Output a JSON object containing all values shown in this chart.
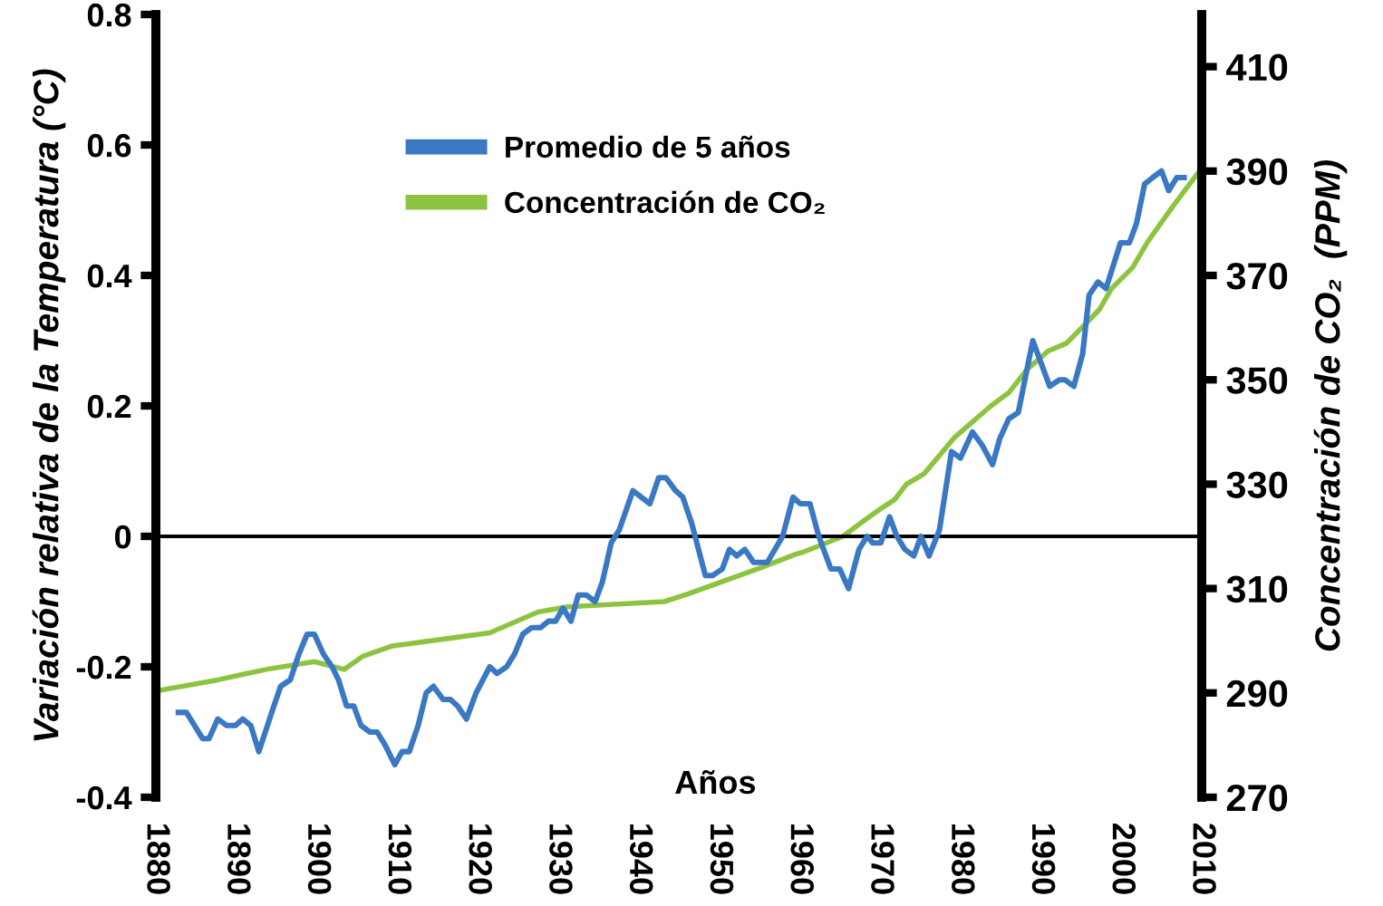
{
  "chart_data": {
    "type": "line",
    "xlabel": "Años",
    "ylabel": "Variación relativa de la Temperatura (°C)",
    "y2label": "Concentración de CO₂  (PPM)",
    "xlim": [
      1880,
      2010
    ],
    "xticks": [
      1880,
      1890,
      1900,
      1910,
      1920,
      1930,
      1940,
      1950,
      1960,
      1970,
      1980,
      1990,
      2000,
      2010
    ],
    "ylim": [
      -0.4,
      0.8
    ],
    "yticks": [
      -0.4,
      -0.2,
      0,
      0.2,
      0.4,
      0.6,
      0.8
    ],
    "y2lim": [
      270,
      420
    ],
    "y2ticks": [
      270,
      290,
      310,
      330,
      350,
      370,
      390,
      410
    ],
    "grid": false,
    "legend": "top left",
    "marker": "none",
    "line_style": "solid",
    "ref_lines": [
      {
        "axis": "y",
        "value": 0,
        "label": null,
        "color": "#000000"
      }
    ],
    "series": [
      {
        "name": "Promedio de 5 años",
        "color": "#3a78c4",
        "x": [
          1882.8,
          1883.8,
          1885.8,
          1886.6,
          1887.7,
          1888.8,
          1889.9,
          1890.8,
          1891.8,
          1892.8,
          1894.4,
          1895.5,
          1896.7,
          1897.8,
          1898.8,
          1899.7,
          1900.8,
          1901.9,
          1902.7,
          1903.7,
          1904.6,
          1905.5,
          1906.6,
          1907.5,
          1908.5,
          1909.7,
          1910.6,
          1911.5,
          1912.6,
          1913.6,
          1914.5,
          1915.7,
          1916.6,
          1917.5,
          1918.6,
          1919.8,
          1921.5,
          1922.4,
          1923.6,
          1924.6,
          1925.6,
          1926.7,
          1927.8,
          1928.8,
          1929.7,
          1930.6,
          1931.6,
          1932.5,
          1933.5,
          1934.6,
          1935.5,
          1936.6,
          1937.6,
          1939.3,
          1941.4,
          1942.5,
          1943.4,
          1944.6,
          1945.5,
          1946.6,
          1948.3,
          1949.2,
          1950.4,
          1951.3,
          1952.2,
          1953.2,
          1954.3,
          1956.0,
          1957.9,
          1959.2,
          1960.1,
          1961.3,
          1962.4,
          1963.9,
          1965.0,
          1966.1,
          1967.4,
          1968.4,
          1969.1,
          1970.1,
          1971.2,
          1972.1,
          1973.1,
          1974.2,
          1975.1,
          1976.1,
          1977.4,
          1978.9,
          1980.0,
          1981.5,
          1982.7,
          1984.0,
          1984.9,
          1986.0,
          1987.2,
          1989.0,
          1991.1,
          1992.3,
          1993.0,
          1994.1,
          1995.2,
          1996.0,
          1997.1,
          1998.1,
          1999.9,
          2001.0,
          2001.9,
          2002.9,
          2003.9,
          2005.0,
          2005.9,
          2006.9,
          2007.8
        ],
        "values": [
          -0.27,
          -0.27,
          -0.31,
          -0.31,
          -0.28,
          -0.29,
          -0.29,
          -0.28,
          -0.29,
          -0.33,
          -0.27,
          -0.23,
          -0.22,
          -0.18,
          -0.15,
          -0.15,
          -0.18,
          -0.2,
          -0.22,
          -0.26,
          -0.26,
          -0.29,
          -0.3,
          -0.3,
          -0.32,
          -0.35,
          -0.33,
          -0.33,
          -0.29,
          -0.24,
          -0.23,
          -0.25,
          -0.25,
          -0.26,
          -0.28,
          -0.24,
          -0.2,
          -0.21,
          -0.2,
          -0.18,
          -0.15,
          -0.14,
          -0.14,
          -0.13,
          -0.13,
          -0.11,
          -0.13,
          -0.09,
          -0.09,
          -0.1,
          -0.07,
          -0.01,
          0.01,
          0.07,
          0.05,
          0.09,
          0.09,
          0.07,
          0.06,
          0.02,
          -0.06,
          -0.06,
          -0.05,
          -0.02,
          -0.03,
          -0.02,
          -0.04,
          -0.04,
          0.0,
          0.06,
          0.05,
          0.05,
          0.0,
          -0.05,
          -0.05,
          -0.08,
          -0.02,
          0.0,
          -0.01,
          -0.01,
          0.03,
          0.0,
          -0.02,
          -0.03,
          0.0,
          -0.03,
          0.01,
          0.13,
          0.12,
          0.16,
          0.14,
          0.11,
          0.15,
          0.18,
          0.19,
          0.3,
          0.23,
          0.24,
          0.24,
          0.23,
          0.28,
          0.37,
          0.39,
          0.38,
          0.45,
          0.45,
          0.48,
          0.54,
          0.55,
          0.56,
          0.53,
          0.55,
          0.55
        ]
      },
      {
        "name": "Concentración de CO₂",
        "color": "#8cc43f",
        "axis": "y2",
        "x": [
          1880.5,
          1887.7,
          1893.7,
          1899.7,
          1903.4,
          1905.7,
          1909.4,
          1921.5,
          1927.5,
          1931.2,
          1943.2,
          1946.2,
          1955.2,
          1959.4,
          1960.5,
          1965.4,
          1968.0,
          1970.3,
          1971.8,
          1973.3,
          1975.5,
          1979.3,
          1983.8,
          1986.0,
          1988.3,
          1990.9,
          1993.2,
          1997.3,
          1998.8,
          2001.4,
          2003.3,
          2006.3,
          2009.7
        ],
        "values": [
          290.5,
          292.5,
          294.5,
          296,
          294.5,
          297,
          299,
          301.5,
          305.5,
          306.5,
          307.5,
          309,
          314,
          316.5,
          317,
          320,
          323,
          325.5,
          327,
          330,
          332,
          339,
          345,
          347.5,
          352,
          355.5,
          357,
          363.5,
          367.5,
          371.5,
          376.5,
          383,
          390
        ]
      }
    ]
  }
}
